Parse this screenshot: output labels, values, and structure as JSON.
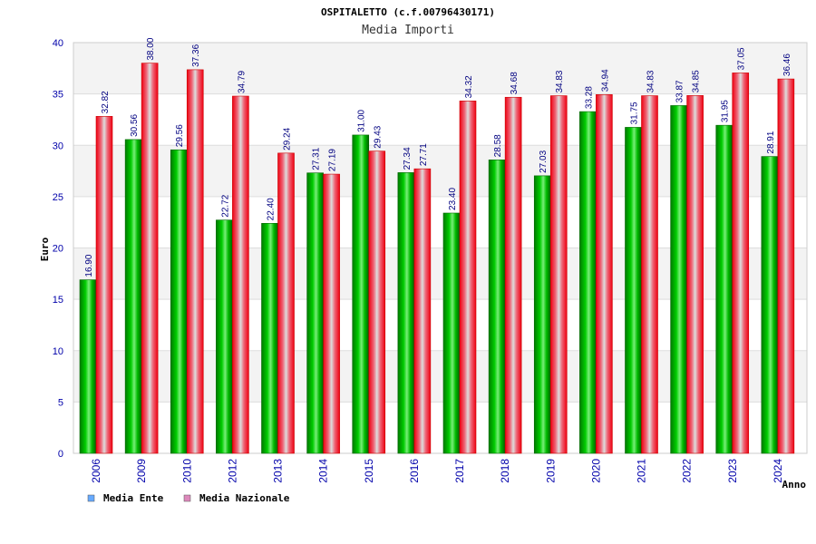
{
  "chart_data": {
    "type": "bar",
    "title": "OSPITALETTO (c.f.00796430171)",
    "subtitle": "Media Importi",
    "ylabel": "Euro",
    "xlabel": "Anno",
    "ylim": [
      0,
      40
    ],
    "yticks": [
      0,
      5,
      10,
      15,
      20,
      25,
      30,
      35,
      40
    ],
    "grid": true,
    "legend_position": "bottom-left",
    "categories": [
      "2006",
      "2009",
      "2010",
      "2012",
      "2013",
      "2014",
      "2015",
      "2016",
      "2017",
      "2018",
      "2019",
      "2020",
      "2021",
      "2022",
      "2023",
      "2024"
    ],
    "series": [
      {
        "name": "Media Ente",
        "color": "#00aa00",
        "legend_color": "#66aaff",
        "values": [
          16.9,
          30.56,
          29.56,
          22.72,
          22.4,
          27.31,
          31.0,
          27.34,
          23.4,
          28.58,
          27.03,
          33.28,
          31.75,
          33.87,
          31.95,
          28.91
        ],
        "labels": [
          "16.90",
          "30.56",
          "29.56",
          "22.72",
          "22.40",
          "27.31",
          "31.00",
          "27.34",
          "23.40",
          "28.58",
          "27.03",
          "33.28",
          "31.75",
          "33.87",
          "31.95",
          "28.91"
        ]
      },
      {
        "name": "Media Nazionale",
        "color": "#ee1122",
        "legend_color": "#dd88bb",
        "values": [
          32.82,
          38.0,
          37.36,
          34.79,
          29.24,
          27.19,
          29.43,
          27.71,
          34.32,
          34.68,
          34.83,
          34.94,
          34.83,
          34.85,
          37.05,
          36.46
        ],
        "labels": [
          "32.82",
          "38.00",
          "37.36",
          "34.79",
          "29.24",
          "27.19",
          "29.43",
          "27.71",
          "34.32",
          "34.68",
          "34.83",
          "34.94",
          "34.83",
          "34.85",
          "37.05",
          "36.46"
        ]
      }
    ]
  }
}
